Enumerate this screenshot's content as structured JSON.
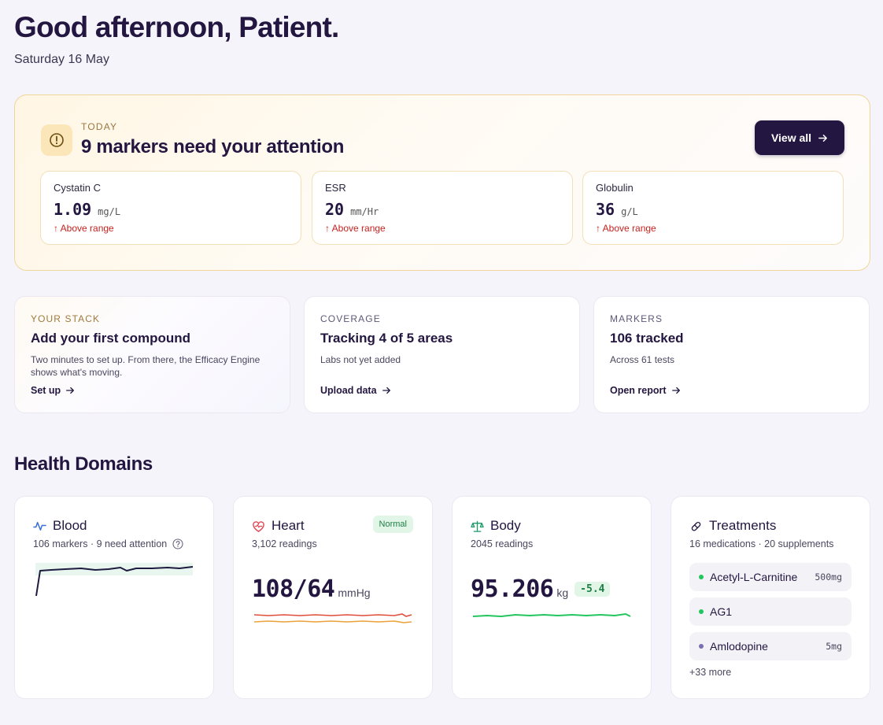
{
  "greeting": "Good afternoon, Patient.",
  "date": "Saturday 16 May",
  "attention": {
    "kicker": "TODAY",
    "title": "9 markers need your attention",
    "button": "View all",
    "markers": [
      {
        "name": "Cystatin C",
        "value": "1.09",
        "unit": "mg/L",
        "status": "↑ Above range"
      },
      {
        "name": "ESR",
        "value": "20",
        "unit": "mm/Hr",
        "status": "↑ Above range"
      },
      {
        "name": "Globulin",
        "value": "36",
        "unit": "g/L",
        "status": "↑ Above range"
      }
    ]
  },
  "cards": [
    {
      "kicker": "YOUR STACK",
      "title": "Add your first compound",
      "desc": "Two minutes to set up. From there, the Efficacy Engine shows what's moving.",
      "link": "Set up"
    },
    {
      "kicker": "COVERAGE",
      "title": "Tracking 4 of 5 areas",
      "desc": "Labs not yet added",
      "link": "Upload data"
    },
    {
      "kicker": "MARKERS",
      "title": "106 tracked",
      "desc": "Across 61 tests",
      "link": "Open report"
    }
  ],
  "section_title": "Health Domains",
  "domains": {
    "blood": {
      "title": "Blood",
      "sub": "106 markers · 9 need attention"
    },
    "heart": {
      "title": "Heart",
      "sub": "3,102 readings",
      "badge": "Normal",
      "value": "108/64",
      "unit": "mmHg"
    },
    "body": {
      "title": "Body",
      "sub": "2045 readings",
      "value": "95.206",
      "unit": "kg",
      "delta": "-5.4"
    },
    "treatments": {
      "title": "Treatments",
      "sub": "16 medications · 20 supplements",
      "items": [
        {
          "name": "Acetyl-L-Carnitine",
          "dose": "500mg",
          "dot": "#22c55e"
        },
        {
          "name": "AG1",
          "dose": "",
          "dot": "#22c55e"
        },
        {
          "name": "Amlodopine",
          "dose": "5mg",
          "dot": "#7c6fae"
        }
      ],
      "more": "+33 more"
    }
  },
  "colors": {
    "accent": "#231640",
    "warning": "#c5221f",
    "good": "#1d7f44"
  }
}
